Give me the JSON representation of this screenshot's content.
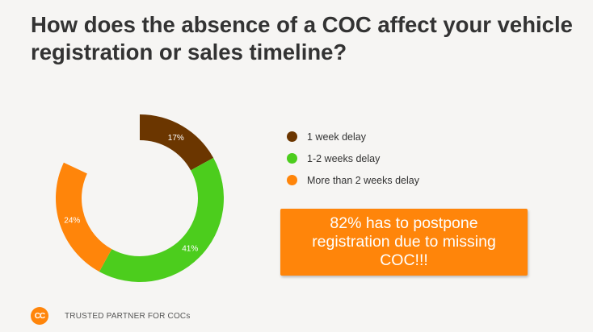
{
  "header": {
    "title": "How does the absence of a COC affect your vehicle registration or sales timeline?"
  },
  "chart_data": {
    "type": "pie",
    "variant": "donut",
    "categories": [
      "1 week delay",
      "1-2 weeks delay",
      "More than 2 weeks delay"
    ],
    "values": [
      17,
      41,
      24
    ],
    "data_labels": [
      "17%",
      "41%",
      "24%"
    ],
    "unit": "%",
    "colors": [
      "#6b3600",
      "#4ccd1d",
      "#ff850a"
    ],
    "legend_position": "right"
  },
  "callout": {
    "text": "82% has to postpone registration due to missing COC!!!",
    "background": "#ff850a"
  },
  "footer": {
    "logo_text": "CC",
    "tagline": "TRUSTED PARTNER FOR COCs"
  }
}
